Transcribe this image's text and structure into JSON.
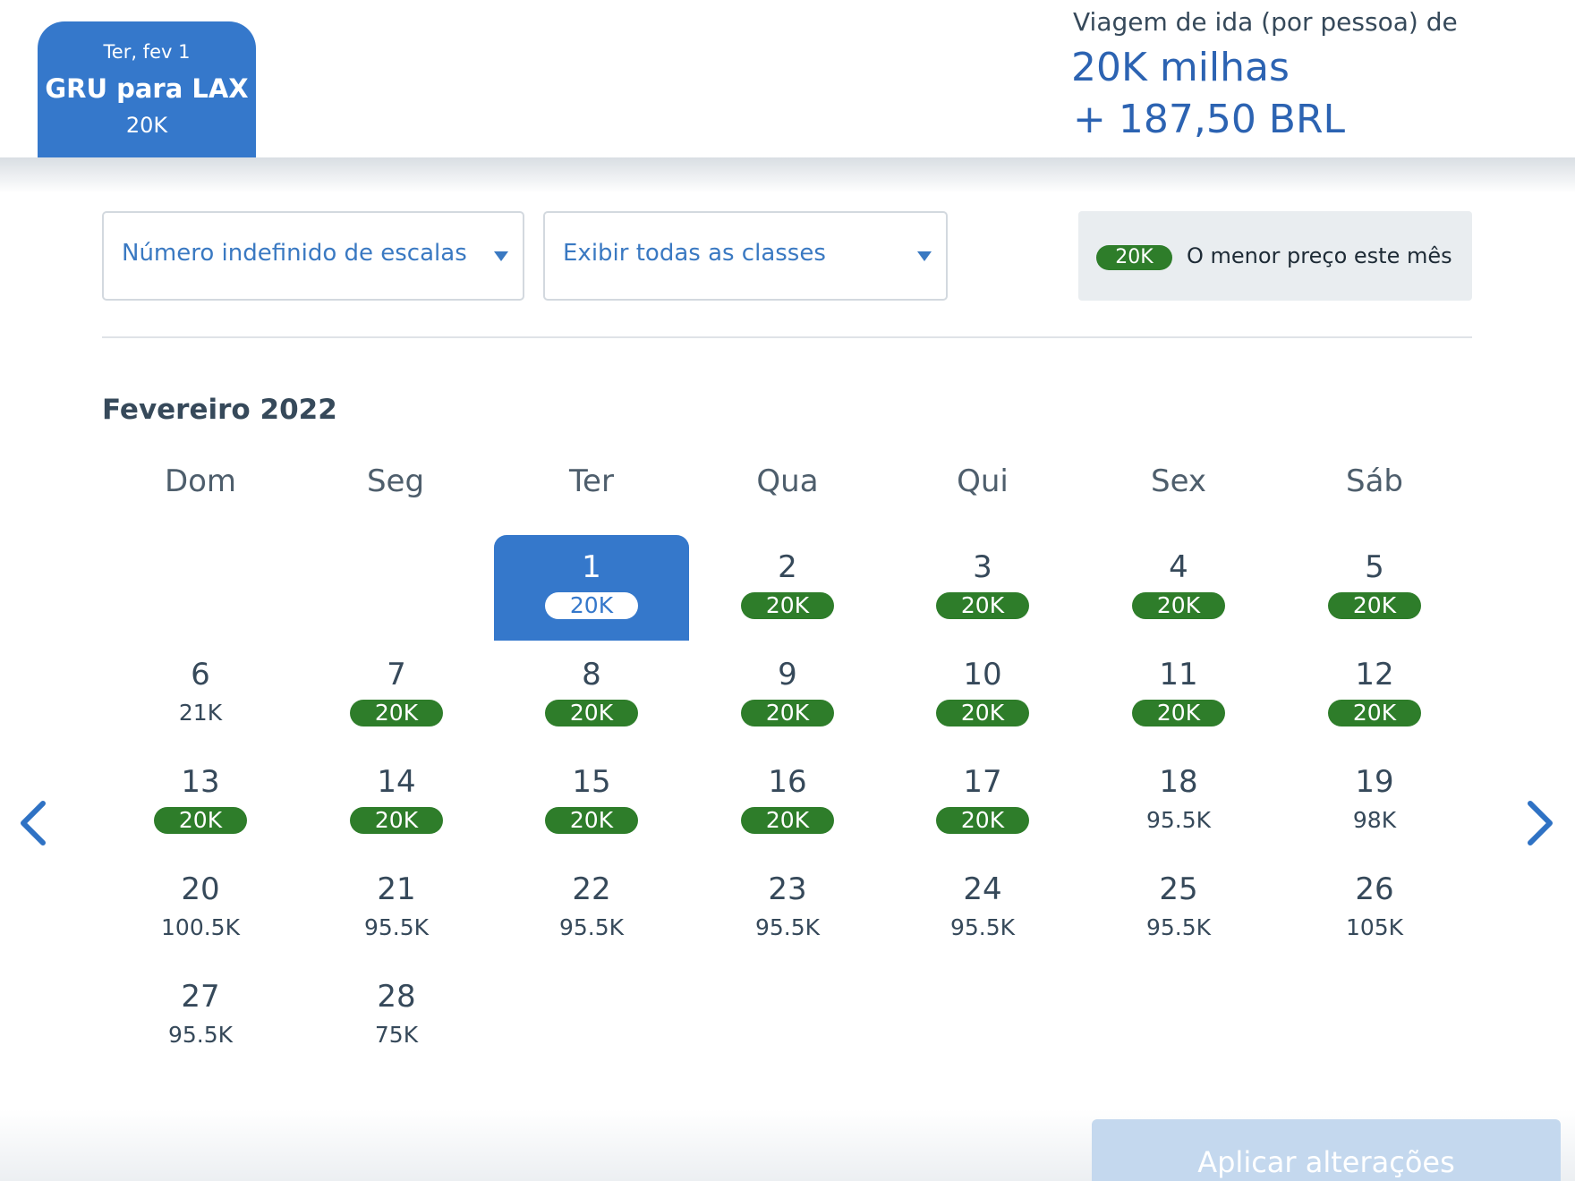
{
  "trip": {
    "date": "Ter, fev 1",
    "route": "GRU para LAX",
    "price": "20K"
  },
  "fare": {
    "caption": "Viagem de ida (por pessoa) de",
    "miles": "20K milhas",
    "cash": "+ 187,50 BRL"
  },
  "filters": {
    "stops": "Número indefinido de escalas",
    "cabin": "Exibir todas as classes"
  },
  "legend": {
    "badge": "20K",
    "text": "O menor preço este mês"
  },
  "calendar": {
    "month": "Fevereiro 2022",
    "weekdays": [
      "Dom",
      "Seg",
      "Ter",
      "Qua",
      "Qui",
      "Sex",
      "Sáb"
    ],
    "days": [
      {
        "day": "1",
        "price": "20K",
        "low": true,
        "selected": true
      },
      {
        "day": "2",
        "price": "20K",
        "low": true
      },
      {
        "day": "3",
        "price": "20K",
        "low": true
      },
      {
        "day": "4",
        "price": "20K",
        "low": true
      },
      {
        "day": "5",
        "price": "20K",
        "low": true
      },
      {
        "day": "6",
        "price": "21K",
        "low": false
      },
      {
        "day": "7",
        "price": "20K",
        "low": true
      },
      {
        "day": "8",
        "price": "20K",
        "low": true
      },
      {
        "day": "9",
        "price": "20K",
        "low": true
      },
      {
        "day": "10",
        "price": "20K",
        "low": true
      },
      {
        "day": "11",
        "price": "20K",
        "low": true
      },
      {
        "day": "12",
        "price": "20K",
        "low": true
      },
      {
        "day": "13",
        "price": "20K",
        "low": true
      },
      {
        "day": "14",
        "price": "20K",
        "low": true
      },
      {
        "day": "15",
        "price": "20K",
        "low": true
      },
      {
        "day": "16",
        "price": "20K",
        "low": true
      },
      {
        "day": "17",
        "price": "20K",
        "low": true
      },
      {
        "day": "18",
        "price": "95.5K",
        "low": false
      },
      {
        "day": "19",
        "price": "98K",
        "low": false
      },
      {
        "day": "20",
        "price": "100.5K",
        "low": false
      },
      {
        "day": "21",
        "price": "95.5K",
        "low": false
      },
      {
        "day": "22",
        "price": "95.5K",
        "low": false
      },
      {
        "day": "23",
        "price": "95.5K",
        "low": false
      },
      {
        "day": "24",
        "price": "95.5K",
        "low": false
      },
      {
        "day": "25",
        "price": "95.5K",
        "low": false
      },
      {
        "day": "26",
        "price": "105K",
        "low": false
      },
      {
        "day": "27",
        "price": "95.5K",
        "low": false
      },
      {
        "day": "28",
        "price": "75K",
        "low": false
      }
    ]
  },
  "icons": {
    "prev": "chevron-left-icon",
    "next": "chevron-right-icon"
  },
  "colors": {
    "brand_blue": "#3578cb",
    "lowest_price_green": "#2e7d2a"
  },
  "apply_button": "Aplicar alterações"
}
